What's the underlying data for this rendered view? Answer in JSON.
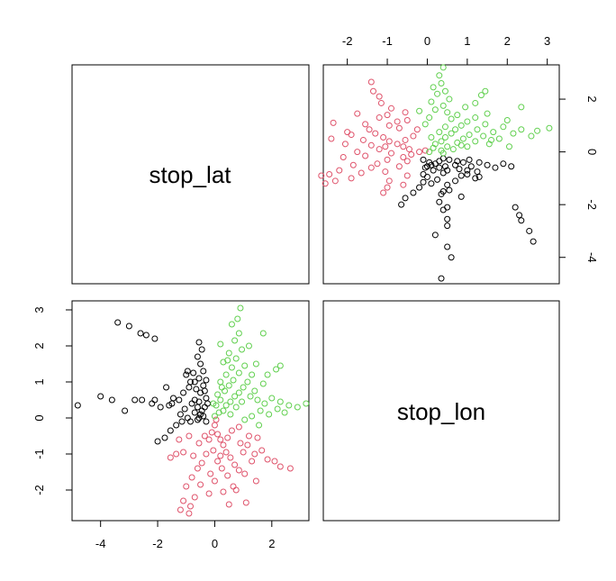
{
  "chart_data": {
    "type": "scatter",
    "title": "",
    "variables": [
      "stop_lat",
      "stop_lon"
    ],
    "grid": false,
    "legend": "none",
    "colors": {
      "black": "#000000",
      "red": "#DF536B",
      "green": "#61D04F"
    },
    "panels": {
      "upper_right": {
        "x_var": "stop_lon",
        "y_var": "stop_lat",
        "xlim": [
          -2.6,
          3.3
        ],
        "ylim": [
          -5.0,
          3.3
        ],
        "xticks": [
          -2,
          -1,
          0,
          1,
          2,
          3
        ],
        "yticks": [
          2,
          0,
          -2,
          -4
        ]
      },
      "lower_left": {
        "x_var": "stop_lat",
        "y_var": "stop_lon",
        "xlim": [
          -5.0,
          3.3
        ],
        "ylim": [
          -2.85,
          3.25
        ],
        "xticks": [
          -4,
          -2,
          0,
          2
        ],
        "yticks": [
          3,
          2,
          1,
          0,
          -1,
          -2
        ]
      }
    },
    "series": [
      {
        "name": "",
        "color": "black",
        "points": [
          [
            -0.55,
            0.0
          ],
          [
            -0.5,
            0.1
          ],
          [
            -0.45,
            0.2
          ],
          [
            -0.6,
            0.3
          ],
          [
            -0.4,
            0.05
          ],
          [
            -0.55,
            0.45
          ],
          [
            -0.35,
            0.3
          ],
          [
            -0.7,
            0.5
          ],
          [
            -0.8,
            0.4
          ],
          [
            -0.3,
            0.55
          ],
          [
            -0.5,
            0.7
          ],
          [
            -0.65,
            0.8
          ],
          [
            -0.4,
            0.9
          ],
          [
            -0.85,
            1.0
          ],
          [
            -0.3,
            1.05
          ],
          [
            -0.55,
            1.1
          ],
          [
            -0.75,
            1.25
          ],
          [
            -0.4,
            1.3
          ],
          [
            -0.95,
            1.3
          ],
          [
            -0.5,
            1.5
          ],
          [
            -0.6,
            1.7
          ],
          [
            -0.45,
            1.9
          ],
          [
            -0.55,
            2.1
          ],
          [
            -1.0,
            1.2
          ],
          [
            -0.9,
            0.85
          ],
          [
            -1.1,
            0.7
          ],
          [
            -1.25,
            0.5
          ],
          [
            -1.5,
            0.4
          ],
          [
            -1.05,
            0.25
          ],
          [
            -1.2,
            0.1
          ],
          [
            -0.7,
            0.15
          ],
          [
            -0.95,
            0.0
          ],
          [
            -1.15,
            -0.1
          ],
          [
            -1.35,
            -0.2
          ],
          [
            -1.55,
            -0.35
          ],
          [
            -1.75,
            -0.55
          ],
          [
            -2.0,
            -0.65
          ],
          [
            -0.85,
            -0.1
          ],
          [
            -0.3,
            -0.1
          ],
          [
            -1.6,
            0.35
          ],
          [
            -1.9,
            0.3
          ],
          [
            -2.2,
            0.4
          ],
          [
            -2.1,
            0.5
          ],
          [
            -2.55,
            0.5
          ],
          [
            -2.8,
            0.5
          ],
          [
            -3.15,
            0.2
          ],
          [
            -3.6,
            0.5
          ],
          [
            -4.0,
            0.6
          ],
          [
            -4.8,
            0.35
          ],
          [
            -1.7,
            0.85
          ],
          [
            -0.35,
            0.75
          ],
          [
            -2.1,
            2.2
          ],
          [
            -2.4,
            2.3
          ],
          [
            -2.6,
            2.35
          ],
          [
            -3.0,
            2.55
          ],
          [
            -3.4,
            2.65
          ],
          [
            -1.45,
            0.55
          ],
          [
            -0.6,
            -0.05
          ],
          [
            -0.25,
            0.4
          ],
          [
            -0.7,
            1.0
          ]
        ]
      },
      {
        "name": "",
        "color": "red",
        "points": [
          [
            0.05,
            -0.05
          ],
          [
            0.0,
            -0.2
          ],
          [
            -0.1,
            -0.4
          ],
          [
            0.1,
            -0.45
          ],
          [
            0.2,
            -0.6
          ],
          [
            -0.2,
            -0.6
          ],
          [
            0.3,
            -0.75
          ],
          [
            -0.05,
            -0.9
          ],
          [
            0.4,
            -0.95
          ],
          [
            -0.3,
            -1.0
          ],
          [
            0.55,
            -1.1
          ],
          [
            0.1,
            -1.2
          ],
          [
            -0.45,
            -1.25
          ],
          [
            0.7,
            -1.3
          ],
          [
            0.25,
            -1.4
          ],
          [
            -0.6,
            -1.4
          ],
          [
            0.85,
            -1.45
          ],
          [
            -0.15,
            -1.55
          ],
          [
            0.45,
            -1.6
          ],
          [
            -0.8,
            -1.65
          ],
          [
            0.0,
            -1.75
          ],
          [
            -0.5,
            -1.85
          ],
          [
            0.65,
            -1.9
          ],
          [
            -1.0,
            -1.9
          ],
          [
            0.3,
            -2.05
          ],
          [
            -0.2,
            -2.1
          ],
          [
            -0.7,
            -2.2
          ],
          [
            -1.1,
            -2.3
          ],
          [
            0.5,
            -2.4
          ],
          [
            -0.85,
            -2.45
          ],
          [
            -1.2,
            -2.55
          ],
          [
            -0.9,
            -2.65
          ],
          [
            0.9,
            -0.7
          ],
          [
            1.15,
            -0.75
          ],
          [
            1.4,
            -1.0
          ],
          [
            1.65,
            -0.9
          ],
          [
            1.85,
            -1.15
          ],
          [
            2.1,
            -1.2
          ],
          [
            2.3,
            -1.35
          ],
          [
            2.65,
            -1.4
          ],
          [
            1.2,
            -0.5
          ],
          [
            1.5,
            -0.55
          ],
          [
            1.0,
            -0.95
          ],
          [
            1.3,
            -1.2
          ],
          [
            1.05,
            -1.55
          ],
          [
            1.45,
            -1.75
          ],
          [
            0.75,
            -2.0
          ],
          [
            -1.35,
            -1.0
          ],
          [
            -1.55,
            -1.1
          ],
          [
            -1.1,
            -0.95
          ],
          [
            -1.25,
            -0.6
          ],
          [
            -0.9,
            -0.5
          ],
          [
            -0.55,
            -0.7
          ],
          [
            -0.35,
            -0.5
          ],
          [
            0.6,
            -0.35
          ],
          [
            0.85,
            -0.25
          ],
          [
            0.45,
            -0.55
          ],
          [
            -0.75,
            -1.05
          ],
          [
            0.2,
            -1.05
          ],
          [
            1.1,
            -2.35
          ]
        ]
      },
      {
        "name": "",
        "color": "green",
        "points": [
          [
            0.0,
            0.05
          ],
          [
            0.15,
            0.15
          ],
          [
            0.3,
            0.2
          ],
          [
            0.05,
            0.35
          ],
          [
            0.4,
            0.35
          ],
          [
            0.2,
            0.5
          ],
          [
            0.55,
            0.45
          ],
          [
            0.1,
            0.65
          ],
          [
            0.7,
            0.6
          ],
          [
            0.35,
            0.75
          ],
          [
            0.85,
            0.7
          ],
          [
            0.5,
            0.9
          ],
          [
            1.0,
            0.85
          ],
          [
            0.2,
            1.0
          ],
          [
            0.65,
            1.05
          ],
          [
            1.15,
            1.0
          ],
          [
            0.4,
            1.2
          ],
          [
            0.85,
            1.25
          ],
          [
            1.3,
            1.2
          ],
          [
            0.6,
            1.4
          ],
          [
            1.05,
            1.45
          ],
          [
            0.3,
            1.55
          ],
          [
            0.75,
            1.65
          ],
          [
            1.45,
            1.5
          ],
          [
            0.5,
            1.8
          ],
          [
            0.95,
            1.9
          ],
          [
            0.2,
            2.05
          ],
          [
            0.7,
            2.15
          ],
          [
            1.2,
            2.0
          ],
          [
            0.85,
            2.35
          ],
          [
            1.5,
            0.5
          ],
          [
            1.75,
            0.4
          ],
          [
            2.0,
            0.55
          ],
          [
            2.3,
            0.45
          ],
          [
            2.6,
            0.35
          ],
          [
            2.9,
            0.3
          ],
          [
            3.2,
            0.4
          ],
          [
            1.6,
            0.2
          ],
          [
            1.9,
            0.1
          ],
          [
            2.2,
            0.25
          ],
          [
            2.45,
            0.15
          ],
          [
            1.3,
            0.05
          ],
          [
            1.05,
            -0.05
          ],
          [
            1.55,
            -0.2
          ],
          [
            0.75,
            0.3
          ],
          [
            0.95,
            0.45
          ],
          [
            1.25,
            0.6
          ],
          [
            1.7,
            0.95
          ],
          [
            1.85,
            1.2
          ],
          [
            2.15,
            1.35
          ],
          [
            2.3,
            1.45
          ],
          [
            0.6,
            2.6
          ],
          [
            0.8,
            2.75
          ],
          [
            0.9,
            3.05
          ],
          [
            1.7,
            2.35
          ],
          [
            0.25,
            0.85
          ],
          [
            0.55,
            0.1
          ],
          [
            -0.05,
            0.4
          ],
          [
            1.4,
            0.75
          ],
          [
            0.45,
            1.6
          ]
        ]
      }
    ]
  },
  "labels": {
    "diag_top_left": "stop_lat",
    "diag_bottom_right": "stop_lon"
  }
}
